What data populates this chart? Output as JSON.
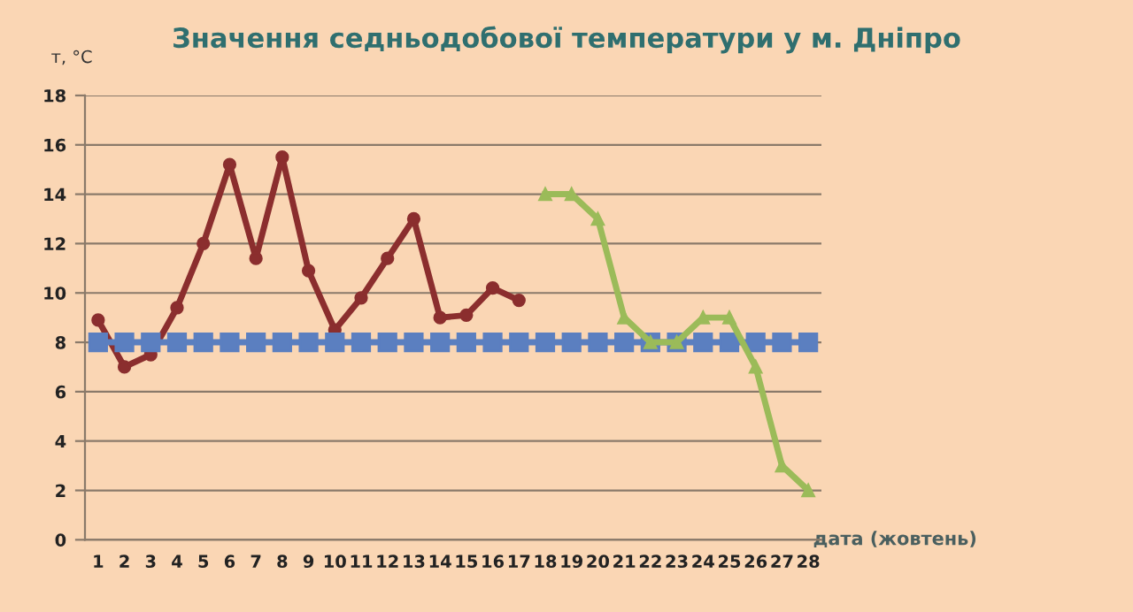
{
  "chart_data": {
    "type": "line",
    "title": "Значення седньодобової температури у м. Дніпро",
    "ylabel": "т, °С",
    "xlabel": "дата (жовтень)",
    "categories": [
      "1",
      "2",
      "3",
      "4",
      "5",
      "6",
      "7",
      "8",
      "9",
      "10",
      "11",
      "12",
      "13",
      "14",
      "15",
      "16",
      "17",
      "18",
      "19",
      "20",
      "21",
      "22",
      "23",
      "24",
      "25",
      "26",
      "27",
      "28"
    ],
    "series": [
      {
        "color": "#8b2e2e",
        "marker": "circle",
        "values": [
          8.9,
          7,
          7.5,
          9.4,
          12,
          15.2,
          11.4,
          15.5,
          10.9,
          8.5,
          9.8,
          11.4,
          13,
          9,
          9.1,
          10.2,
          9.7,
          null,
          null,
          null,
          null,
          null,
          null,
          null,
          null,
          null,
          null,
          null
        ]
      },
      {
        "color": "#5b7fc0",
        "marker": "square",
        "values": [
          8,
          8,
          8,
          8,
          8,
          8,
          8,
          8,
          8,
          8,
          8,
          8,
          8,
          8,
          8,
          8,
          8,
          8,
          8,
          8,
          8,
          8,
          8,
          8,
          8,
          8,
          8,
          8
        ]
      },
      {
        "color": "#9bbb59",
        "marker": "triangle",
        "values": [
          null,
          null,
          null,
          null,
          null,
          null,
          null,
          null,
          null,
          null,
          null,
          null,
          null,
          null,
          null,
          null,
          null,
          14,
          14,
          13,
          9,
          8,
          8,
          9,
          9,
          7,
          3,
          2
        ]
      }
    ],
    "ylim": [
      0,
      18
    ],
    "yticks": [
      0,
      2,
      4,
      6,
      8,
      10,
      12,
      14,
      16,
      18
    ],
    "grid": "y",
    "legend": false
  }
}
